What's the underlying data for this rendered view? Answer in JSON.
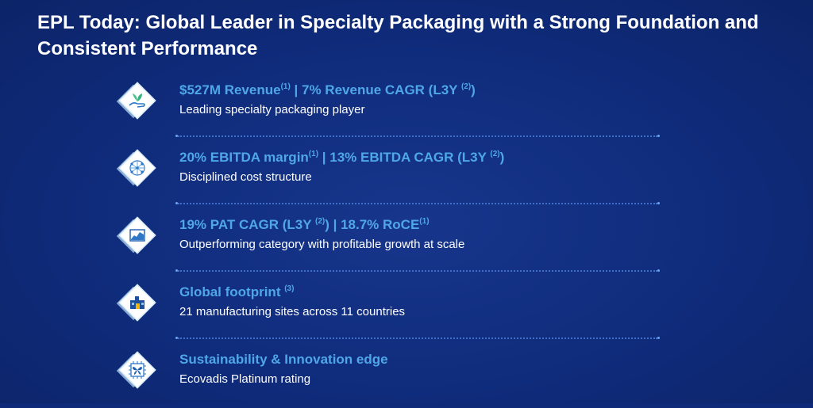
{
  "title": "EPL Today: Global Leader in Specialty Packaging with a Strong Foundation and Consistent Performance",
  "rows": [
    {
      "icon": "leaf-hand-icon",
      "headline": {
        "a": "$527M Revenue",
        "a_sup": "(1)",
        "b": " | 7% Revenue CAGR (L3Y ",
        "b_sup": "(2)",
        "c": ")"
      },
      "sub": "Leading specialty packaging player"
    },
    {
      "icon": "network-globe-icon",
      "headline": {
        "a": "20% EBITDA margin",
        "a_sup": "(1)",
        "b": " | 13% EBITDA CAGR (L3Y ",
        "b_sup": "(2)",
        "c": ")"
      },
      "sub": "Disciplined cost structure"
    },
    {
      "icon": "line-chart-icon",
      "headline": {
        "a": "19% PAT CAGR (L3Y ",
        "a_sup": "(2)",
        "b": ") | 18.7% RoCE",
        "b_sup": "(1)",
        "c": ""
      },
      "sub": "Outperforming category with profitable growth at scale"
    },
    {
      "icon": "factory-icon",
      "headline": {
        "a": "Global footprint ",
        "a_sup": "(3)",
        "b": "",
        "b_sup": "",
        "c": ""
      },
      "sub": "21 manufacturing sites across 11 countries"
    },
    {
      "icon": "butterfly-chip-icon",
      "headline": {
        "a": "Sustainability & Innovation edge",
        "a_sup": "",
        "b": "",
        "b_sup": "",
        "c": ""
      },
      "sub": "Ecovadis Platinum rating"
    }
  ],
  "colors": {
    "background": "#0f2b7b",
    "headline": "#4fa7e8",
    "subtext": "#ffffff",
    "divider": "#3f6fc9"
  }
}
